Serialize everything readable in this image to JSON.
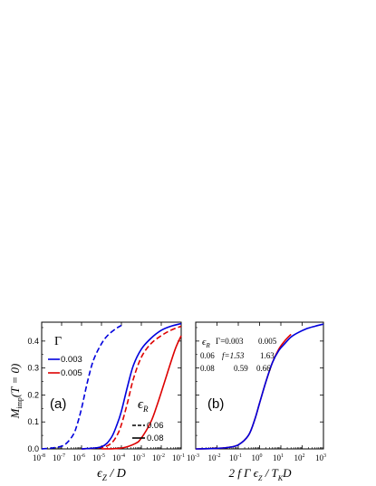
{
  "chart_data": [
    {
      "panel_label": "(a)",
      "type": "line",
      "x_scale": "log",
      "xlim": [
        1e-08,
        0.1
      ],
      "ylim": [
        0,
        0.47
      ],
      "xlabel": {
        "main": "ϵ",
        "sub": "Z",
        "tail": " / D"
      },
      "ylabel": {
        "main": "M",
        "sub": "imp",
        "tail": "(T = 0)"
      },
      "x_ticks": [
        {
          "v": 1e-08,
          "base": "10",
          "exp": "-8"
        },
        {
          "v": 1e-07,
          "base": "10",
          "exp": "-7"
        },
        {
          "v": 1e-06,
          "base": "10",
          "exp": "-6"
        },
        {
          "v": 1e-05,
          "base": "10",
          "exp": "-5"
        },
        {
          "v": 0.0001,
          "base": "10",
          "exp": "-4"
        },
        {
          "v": 0.001,
          "base": "10",
          "exp": "-3"
        },
        {
          "v": 0.01,
          "base": "10",
          "exp": "-2"
        },
        {
          "v": 0.1,
          "base": "10",
          "exp": "-1"
        }
      ],
      "y_ticks": [
        {
          "v": 0.0,
          "label": "0.0"
        },
        {
          "v": 0.1,
          "label": "0.1"
        },
        {
          "v": 0.2,
          "label": "0.2"
        },
        {
          "v": 0.3,
          "label": "0.3"
        },
        {
          "v": 0.4,
          "label": "0.4"
        }
      ],
      "legend_gamma": {
        "title": "Γ",
        "entries": [
          {
            "label": "0.003",
            "color": "#0000dd"
          },
          {
            "label": "0.005",
            "color": "#dd0000"
          }
        ]
      },
      "legend_eps": {
        "title_main": "ϵ",
        "title_sub": "R",
        "entries": [
          {
            "label": "0.06",
            "style": "dashed"
          },
          {
            "label": "0.08",
            "style": "solid"
          }
        ]
      },
      "series": [
        {
          "gamma": "0.003",
          "eps_R": "0.06",
          "color": "#0000dd",
          "dash": "dashed",
          "x": [
            1e-08,
            3e-08,
            1e-07,
            2e-07,
            4e-07,
            6e-07,
            1e-06,
            2e-06,
            4e-06,
            1e-05,
            2e-05,
            5e-05,
            0.0001
          ],
          "y": [
            0.0,
            0.003,
            0.01,
            0.025,
            0.055,
            0.09,
            0.15,
            0.25,
            0.33,
            0.39,
            0.42,
            0.445,
            0.458
          ]
        },
        {
          "gamma": "0.005",
          "eps_R": "0.06",
          "color": "#dd0000",
          "dash": "dashed",
          "x": [
            1e-06,
            1e-05,
            3e-05,
            6e-05,
            0.0001,
            0.0002,
            0.0004,
            0.001,
            0.003,
            0.01,
            0.03,
            0.1
          ],
          "y": [
            0.0,
            0.005,
            0.02,
            0.05,
            0.09,
            0.17,
            0.26,
            0.34,
            0.39,
            0.42,
            0.44,
            0.455
          ]
        },
        {
          "gamma": "0.003",
          "eps_R": "0.08",
          "color": "#0000dd",
          "dash": "solid",
          "x": [
            1e-06,
            1e-05,
            3e-05,
            6e-05,
            0.0001,
            0.0002,
            0.0004,
            0.001,
            0.003,
            0.01,
            0.03,
            0.1
          ],
          "y": [
            0.0,
            0.008,
            0.04,
            0.09,
            0.14,
            0.23,
            0.31,
            0.37,
            0.41,
            0.44,
            0.455,
            0.465
          ]
        },
        {
          "gamma": "0.005",
          "eps_R": "0.08",
          "color": "#dd0000",
          "dash": "solid",
          "x": [
            1e-05,
            0.0001,
            0.0005,
            0.001,
            0.003,
            0.006,
            0.01,
            0.02,
            0.05,
            0.1
          ],
          "y": [
            0.0,
            0.003,
            0.02,
            0.04,
            0.1,
            0.16,
            0.21,
            0.28,
            0.37,
            0.42
          ]
        }
      ]
    },
    {
      "panel_label": "(b)",
      "type": "line",
      "x_scale": "log",
      "xlim": [
        0.001,
        1000.0
      ],
      "ylim": [
        0,
        0.47
      ],
      "xlabel": {
        "pre": "2 f Γ ϵ",
        "sub1": "Z",
        "mid": " / T",
        "sub2": "K",
        "tail": "D"
      },
      "x_ticks": [
        {
          "v": 0.001,
          "base": "10",
          "exp": "-3"
        },
        {
          "v": 0.01,
          "base": "10",
          "exp": "-2"
        },
        {
          "v": 0.1,
          "base": "10",
          "exp": "-1"
        },
        {
          "v": 1.0,
          "base": "10",
          "exp": "0"
        },
        {
          "v": 10.0,
          "base": "10",
          "exp": "1"
        },
        {
          "v": 100.0,
          "base": "10",
          "exp": "2"
        },
        {
          "v": 1000.0,
          "base": "10",
          "exp": "3"
        }
      ],
      "table": {
        "eps_main": "ϵ",
        "eps_sub": "R",
        "header_gamma1": "Γ=0.003",
        "header_gamma2": "0.005",
        "row1_eps": "0.06",
        "row1_f": "f=1.53",
        "row1_v2": "1.63",
        "row2_eps": "0.08",
        "row2_v1": "0.59",
        "row2_v2": "0.66"
      },
      "series": [
        {
          "color": "#dd0000",
          "x": [
            0.001,
            0.01,
            0.03,
            0.1,
            0.3,
            0.6,
            1,
            2,
            4,
            8,
            15,
            30
          ],
          "y": [
            0.0,
            0.002,
            0.005,
            0.015,
            0.05,
            0.11,
            0.17,
            0.25,
            0.32,
            0.37,
            0.4,
            0.425
          ]
        },
        {
          "color": "#0000dd",
          "x": [
            0.001,
            0.01,
            0.03,
            0.1,
            0.3,
            0.6,
            1,
            2,
            4,
            8,
            15,
            30,
            60,
            150,
            400,
            1000
          ],
          "y": [
            0.0,
            0.002,
            0.005,
            0.015,
            0.05,
            0.11,
            0.17,
            0.25,
            0.32,
            0.365,
            0.39,
            0.415,
            0.43,
            0.445,
            0.455,
            0.463
          ]
        }
      ]
    }
  ]
}
